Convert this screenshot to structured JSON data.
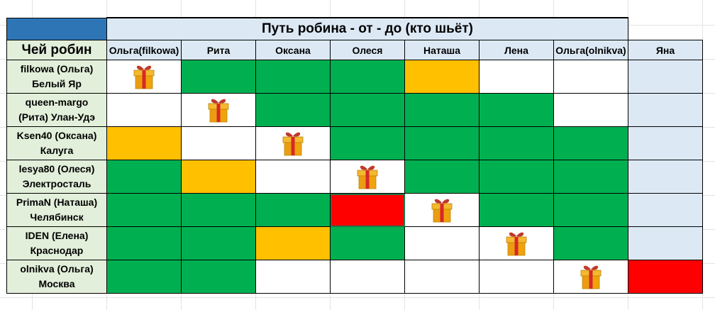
{
  "title": "Путь робина - от - до (кто шьёт)",
  "row_header_label": "Чей робин",
  "columns": [
    "Ольга(filkowa)",
    "Рита",
    "Оксана",
    "Олеся",
    "Наташа",
    "Лена",
    "Ольга(olnikva)",
    "Яна"
  ],
  "rows": [
    {
      "line1": "filkowa (Ольга)",
      "line2": "Белый Яр",
      "cells": [
        "gift",
        "green",
        "green",
        "green",
        "yellow",
        "white",
        "white",
        "blue"
      ]
    },
    {
      "line1": "queen-margo",
      "line2": "(Рита) Улан-Удэ",
      "cells": [
        "white",
        "gift",
        "green",
        "green",
        "green",
        "green",
        "white",
        "blue"
      ]
    },
    {
      "line1": "Ksen40 (Оксана)",
      "line2": "Калуга",
      "cells": [
        "yellow",
        "white",
        "gift",
        "green",
        "green",
        "green",
        "green",
        "blue"
      ]
    },
    {
      "line1": "lesya80 (Олеся)",
      "line2": "Электросталь",
      "cells": [
        "green",
        "yellow",
        "white",
        "gift",
        "green",
        "green",
        "green",
        "blue"
      ]
    },
    {
      "line1": "PrimaN (Наташа)",
      "line2": "Челябинск",
      "cells": [
        "green",
        "green",
        "green",
        "red",
        "gift",
        "green",
        "green",
        "blue"
      ]
    },
    {
      "line1": "IDEN (Елена)",
      "line2": "Краснодар",
      "cells": [
        "green",
        "green",
        "yellow",
        "green",
        "white",
        "gift",
        "green",
        "blue"
      ]
    },
    {
      "line1": "olnikva (Ольга)",
      "line2": "Москва",
      "cells": [
        "green",
        "green",
        "white",
        "white",
        "white",
        "white",
        "gift",
        "red"
      ]
    }
  ],
  "colors": {
    "green": "#00b050",
    "yellow": "#ffc000",
    "red": "#ff0000",
    "white": "#ffffff",
    "blue": "#dce9f5",
    "corner": "#2e75b6",
    "header_blue": "#dce9f5",
    "header_green": "#e2efda"
  },
  "icons": {
    "gift": "gift-icon"
  }
}
